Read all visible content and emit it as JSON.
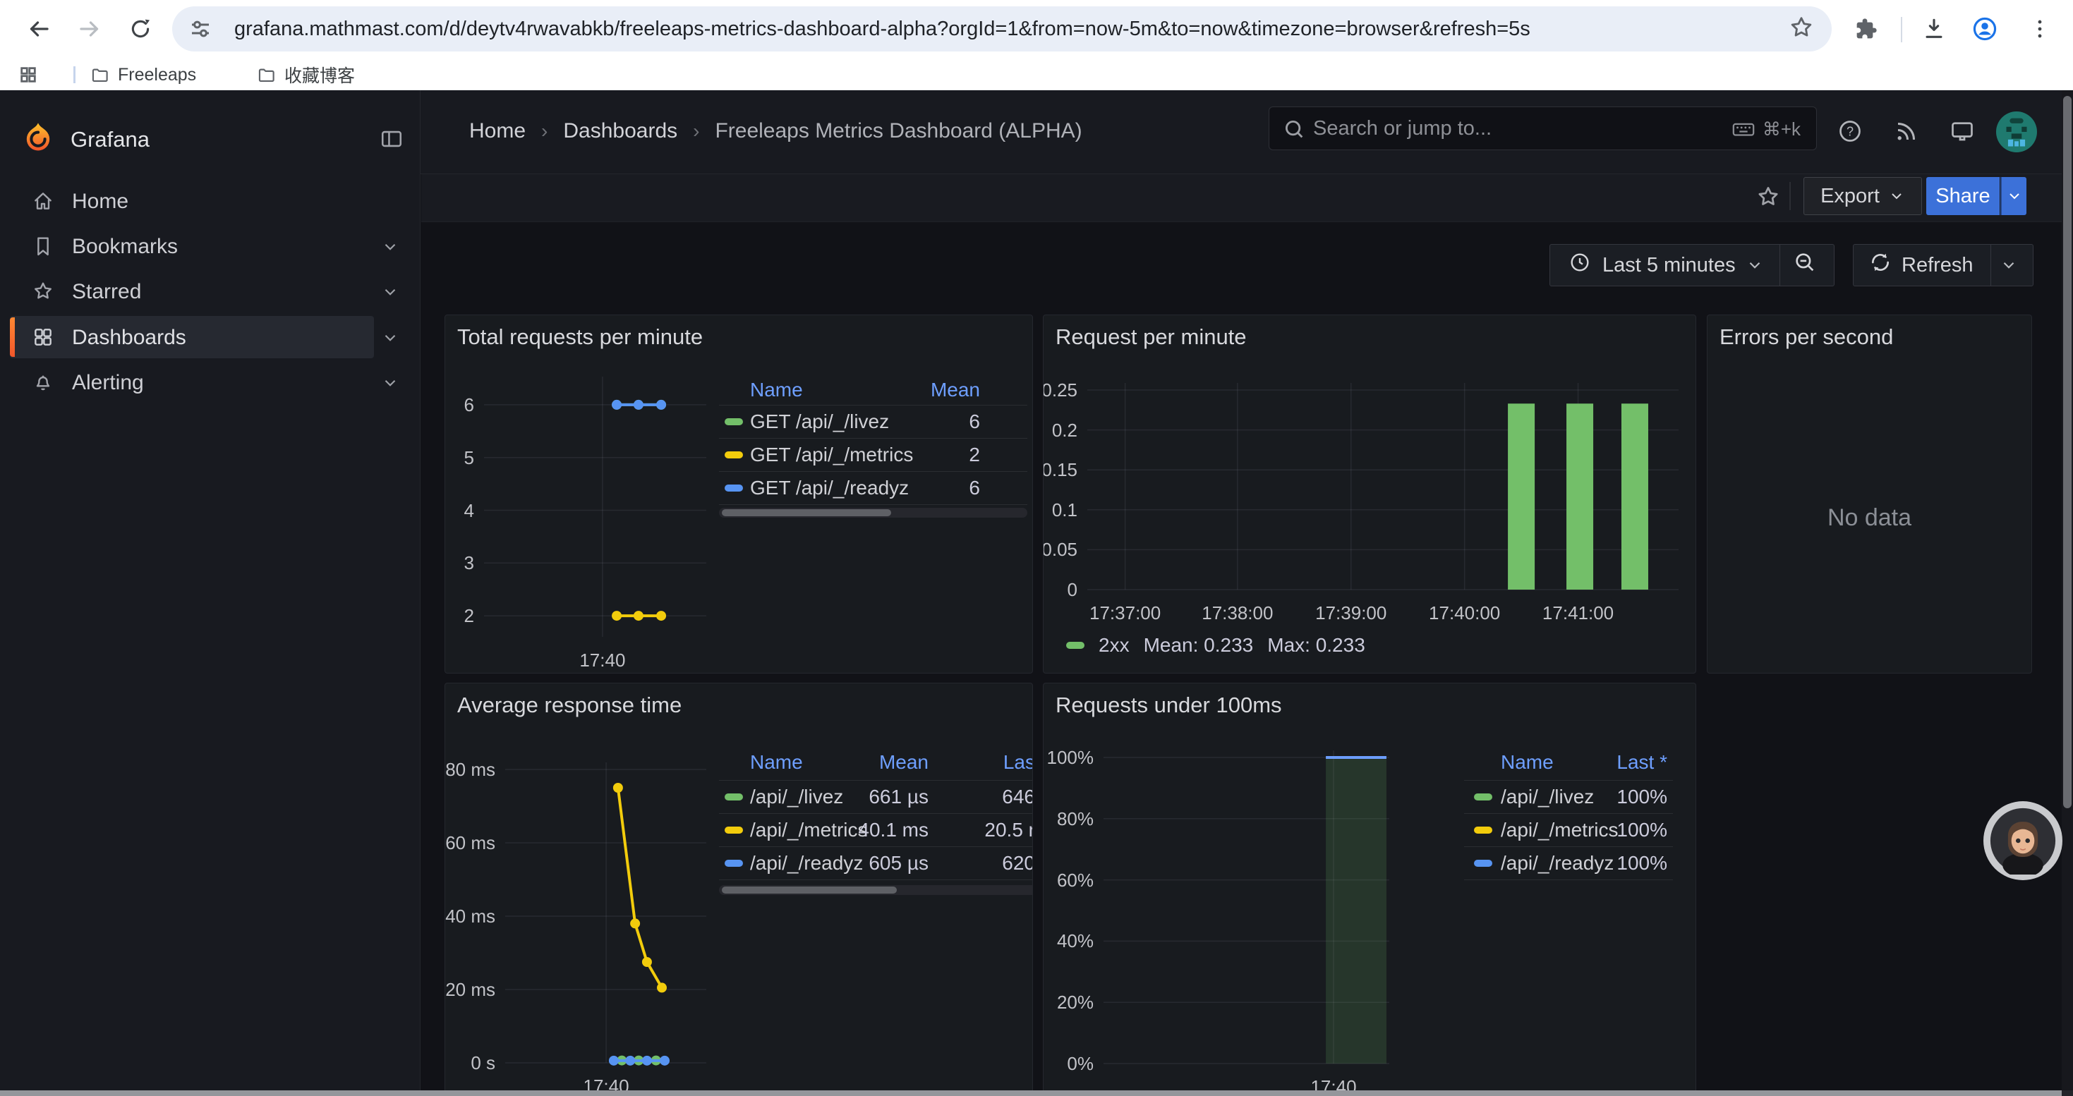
{
  "browser": {
    "url": "grafana.mathmast.com/d/deytv4rwavabkb/freeleaps-metrics-dashboard-alpha?orgId=1&from=now-5m&to=now&timezone=browser&refresh=5s",
    "bookmarks": [
      {
        "label": "Freeleaps"
      },
      {
        "label": "收藏博客"
      }
    ]
  },
  "sidebar": {
    "brand": "Grafana",
    "items": [
      {
        "label": "Home"
      },
      {
        "label": "Bookmarks"
      },
      {
        "label": "Starred"
      },
      {
        "label": "Dashboards",
        "active": true
      },
      {
        "label": "Alerting"
      }
    ]
  },
  "header": {
    "breadcrumbs": [
      "Home",
      "Dashboards",
      "Freeleaps Metrics Dashboard (ALPHA)"
    ],
    "search_placeholder": "Search or jump to...",
    "search_shortcut": "⌘+k"
  },
  "dashboard_toolbar": {
    "export_label": "Export",
    "share_label": "Share"
  },
  "time_controls": {
    "range_label": "Last 5 minutes",
    "refresh_label": "Refresh"
  },
  "colors": {
    "green": "#73bf69",
    "yellow": "#f2cc0c",
    "blue": "#5794f2",
    "light_blue": "#6d9eff",
    "share_blue": "#3c71d9",
    "header_link": "#6e9fff"
  },
  "panels": [
    {
      "id": "total-requests",
      "title": "Total requests per minute",
      "table": {
        "headers": [
          {
            "label": "Name"
          },
          {
            "label": "Mean"
          }
        ],
        "rows": [
          {
            "color": "#73bf69",
            "name": "GET /api/_/livez",
            "values": [
              "6"
            ]
          },
          {
            "color": "#f2cc0c",
            "name": "GET /api/_/metrics",
            "values": [
              "2"
            ]
          },
          {
            "color": "#5794f2",
            "name": "GET /api/_/readyz",
            "values": [
              "6"
            ]
          }
        ]
      },
      "chart": {
        "type": "line",
        "ymin": 1.6,
        "ymax": 6.4,
        "yticks": [
          {
            "v": 6,
            "label": "6"
          },
          {
            "v": 5,
            "label": "5"
          },
          {
            "v": 4,
            "label": "4"
          },
          {
            "v": 3,
            "label": "3"
          },
          {
            "v": 2,
            "label": "2"
          }
        ],
        "xticks": [
          {
            "f": 0.533,
            "label": "17:40"
          }
        ],
        "series": [
          {
            "name": "GET /api/_/livez",
            "color": "#73bf69",
            "type": "line",
            "points": [
              {
                "t": "17:40:15",
                "f": 0.597,
                "v": 6
              },
              {
                "t": "17:40:30",
                "f": 0.695,
                "v": 6
              },
              {
                "t": "17:40:45",
                "f": 0.797,
                "v": 6
              }
            ]
          },
          {
            "name": "GET /api/_/metrics",
            "color": "#f2cc0c",
            "type": "line",
            "points": [
              {
                "t": "17:40:15",
                "f": 0.597,
                "v": 2
              },
              {
                "t": "17:40:30",
                "f": 0.695,
                "v": 2
              },
              {
                "t": "17:40:45",
                "f": 0.797,
                "v": 2
              }
            ]
          },
          {
            "name": "GET /api/_/readyz",
            "color": "#5794f2",
            "type": "line",
            "points": [
              {
                "t": "17:40:15",
                "f": 0.597,
                "v": 6
              },
              {
                "t": "17:40:30",
                "f": 0.695,
                "v": 6
              },
              {
                "t": "17:40:45",
                "f": 0.797,
                "v": 6
              }
            ]
          }
        ]
      }
    },
    {
      "id": "request-per-minute",
      "title": "Request per minute",
      "legend": {
        "color": "#73bf69",
        "series": "2xx",
        "mean": "Mean: 0.233",
        "max": "Max: 0.233"
      },
      "chart": {
        "type": "bar",
        "ymin": 0,
        "ymax": 0.25,
        "yticks": [
          {
            "v": 0.25,
            "label": "0.25"
          },
          {
            "v": 0.2,
            "label": "0.2"
          },
          {
            "v": 0.15,
            "label": "0.15"
          },
          {
            "v": 0.1,
            "label": "0.1"
          },
          {
            "v": 0.05,
            "label": "0.05"
          },
          {
            "v": 0,
            "label": "0"
          }
        ],
        "xticks": [
          {
            "f": 0.064,
            "label": "17:37:00"
          },
          {
            "f": 0.254,
            "label": "17:38:00"
          },
          {
            "f": 0.446,
            "label": "17:39:00"
          },
          {
            "f": 0.638,
            "label": "17:40:00"
          },
          {
            "f": 0.83,
            "label": "17:41:00"
          }
        ],
        "series": [
          {
            "name": "2xx",
            "color": "#73bf69",
            "type": "bars",
            "points": [
              {
                "t": "17:40:30",
                "f": 0.734,
                "v": 0.233
              },
              {
                "t": "17:41:00",
                "f": 0.833,
                "v": 0.233
              },
              {
                "t": "17:41:30",
                "f": 0.926,
                "v": 0.233
              }
            ]
          }
        ]
      }
    },
    {
      "id": "errors-per-second",
      "title": "Errors per second",
      "no_data": "No data"
    },
    {
      "id": "avg-response-time",
      "title": "Average response time",
      "table": {
        "headers": [
          {
            "label": "Name"
          },
          {
            "label": "Mean"
          },
          {
            "label": "Las"
          }
        ],
        "rows": [
          {
            "color": "#73bf69",
            "name": "/api/_/livez",
            "values": [
              "661 µs",
              "646"
            ]
          },
          {
            "color": "#f2cc0c",
            "name": "/api/_/metrics",
            "values": [
              "40.1 ms",
              "20.5 r"
            ]
          },
          {
            "color": "#5794f2",
            "name": "/api/_/readyz",
            "values": [
              "605 µs",
              "620"
            ]
          }
        ]
      },
      "chart": {
        "type": "line",
        "ymin": 0,
        "ymax": 80,
        "yticks": [
          {
            "v": 80,
            "label": "80 ms"
          },
          {
            "v": 60,
            "label": "60 ms"
          },
          {
            "v": 40,
            "label": "40 ms"
          },
          {
            "v": 20,
            "label": "20 ms"
          },
          {
            "v": 0,
            "label": "0 s"
          }
        ],
        "xticks": [
          {
            "f": 0.502,
            "label": "17:40"
          }
        ],
        "series": [
          {
            "name": "/api/_/livez",
            "color": "#73bf69",
            "type": "line",
            "points": [
              {
                "t": "17:40:20",
                "f": 0.58,
                "v": 0.66
              },
              {
                "t": "17:40:35",
                "f": 0.664,
                "v": 0.66
              },
              {
                "t": "17:40:50",
                "f": 0.75,
                "v": 0.66
              }
            ]
          },
          {
            "name": "/api/_/readyz",
            "color": "#5794f2",
            "type": "line",
            "points": [
              {
                "t": "17:40:15",
                "f": 0.54,
                "v": 0.61
              },
              {
                "t": "17:40:30",
                "f": 0.622,
                "v": 0.61
              },
              {
                "t": "17:40:45",
                "f": 0.705,
                "v": 0.61
              },
              {
                "t": "17:41:00",
                "f": 0.793,
                "v": 0.61
              }
            ]
          },
          {
            "name": "/api/_/metrics",
            "color": "#f2cc0c",
            "type": "line",
            "points": [
              {
                "t": "17:40:15",
                "f": 0.561,
                "v": 75
              },
              {
                "t": "17:40:30",
                "f": 0.646,
                "v": 38
              },
              {
                "t": "17:40:45",
                "f": 0.705,
                "v": 27.5
              },
              {
                "t": "17:41:00",
                "f": 0.779,
                "v": 20.5
              }
            ]
          }
        ]
      }
    },
    {
      "id": "requests-under-100ms",
      "title": "Requests under 100ms",
      "table": {
        "headers": [
          {
            "label": "Name"
          },
          {
            "label": "Last *"
          }
        ],
        "rows": [
          {
            "color": "#73bf69",
            "name": "/api/_/livez",
            "values": [
              "100%"
            ]
          },
          {
            "color": "#f2cc0c",
            "name": "/api/_/metrics",
            "values": [
              "100%"
            ]
          },
          {
            "color": "#5794f2",
            "name": "/api/_/readyz",
            "values": [
              "100%"
            ]
          }
        ]
      },
      "chart": {
        "type": "area",
        "ymin": 0,
        "ymax": 100,
        "yticks": [
          {
            "v": 100,
            "label": "100%"
          },
          {
            "v": 80,
            "label": "80%"
          },
          {
            "v": 60,
            "label": "60%"
          },
          {
            "v": 40,
            "label": "40%"
          },
          {
            "v": 20,
            "label": "20%"
          },
          {
            "v": 0,
            "label": "0%"
          }
        ],
        "xticks": [
          {
            "f": 0.805,
            "label": "17:40"
          }
        ],
        "series": [
          {
            "name": "/api/_/readyz",
            "color": "#6d9eff",
            "type": "area-col",
            "f0": 0.778,
            "f1": 0.99,
            "v": 100,
            "fill": "rgba(115,191,105,0.17)"
          }
        ]
      }
    }
  ]
}
